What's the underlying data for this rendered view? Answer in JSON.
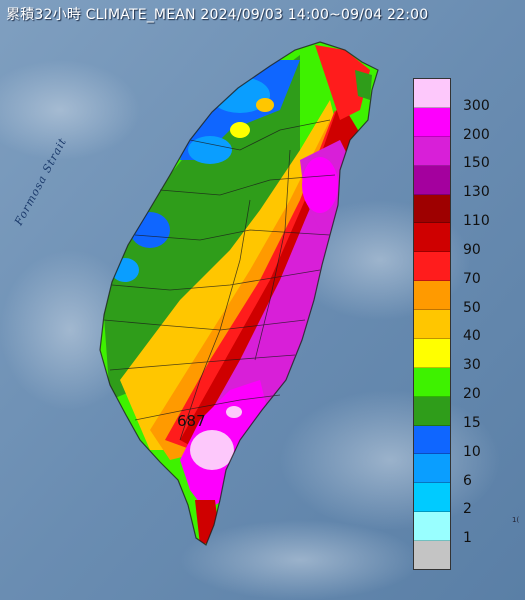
{
  "title": "累積32小時 CLIMATE_MEAN 2024/09/03 14:00~09/04 22:00",
  "strait_label": "Formosa Strait",
  "max_value_label": "687",
  "corner_text": "1(",
  "legend": {
    "levels": [
      "300",
      "200",
      "150",
      "130",
      "110",
      "90",
      "70",
      "50",
      "40",
      "30",
      "20",
      "15",
      "10",
      "6",
      "2",
      "1"
    ],
    "colors": [
      "#fdc8fb",
      "#fd00fd",
      "#d81fd8",
      "#a4009e",
      "#9e0000",
      "#cf0000",
      "#ff1c1c",
      "#ff9a00",
      "#ffc600",
      "#ffff00",
      "#3ef200",
      "#2f9d1a",
      "#0f66ff",
      "#0a9eff",
      "#00cbff",
      "#99ffff",
      "#c4c4c4"
    ]
  }
}
